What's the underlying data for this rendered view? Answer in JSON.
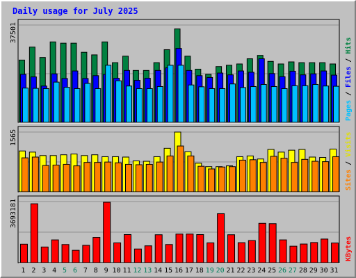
{
  "title": "Daily usage for July 2025",
  "colors": {
    "background": "#c0c0c0",
    "title": "#0000ff",
    "hits": "#008040",
    "files": "#0000ff",
    "pages": "#00c0ff",
    "visits": "#ffff00",
    "sites": "#ff8000",
    "kbytes": "#ff0000",
    "weekend_label": "#00805c",
    "weekday_label": "#000000",
    "separator": "#808080"
  },
  "chart_data": [
    {
      "type": "bar",
      "panel": "hits-files-pages",
      "max_label": "37501",
      "ylim": [
        0,
        37501
      ],
      "legend": [
        {
          "label": "Hits",
          "color": "#008040"
        },
        {
          "label": "Files",
          "color": "#0000ff"
        },
        {
          "label": "Pages",
          "color": "#00c0ff"
        }
      ],
      "categories": [
        "1",
        "2",
        "3",
        "4",
        "5",
        "6",
        "7",
        "8",
        "9",
        "10",
        "11",
        "12",
        "13",
        "14",
        "15",
        "16",
        "17",
        "18",
        "19",
        "20",
        "21",
        "22",
        "23",
        "24",
        "25",
        "26",
        "27",
        "28",
        "29",
        "30",
        "31"
      ],
      "series": [
        {
          "name": "Hits",
          "values": [
            24000,
            29000,
            25000,
            31000,
            30500,
            30500,
            27000,
            26000,
            31000,
            23000,
            25500,
            20000,
            20000,
            23000,
            28000,
            36000,
            25500,
            20500,
            18500,
            21500,
            22000,
            22500,
            24500,
            25800,
            23500,
            22500,
            23300,
            23000,
            23000,
            23000,
            22500
          ]
        },
        {
          "name": "Files",
          "values": [
            18500,
            17500,
            14000,
            18700,
            16900,
            19800,
            16900,
            18000,
            18500,
            17000,
            20000,
            16200,
            17000,
            20000,
            21000,
            28500,
            20000,
            18000,
            17300,
            19000,
            18300,
            19800,
            19300,
            24500,
            18800,
            17600,
            19700,
            18300,
            18700,
            19800,
            18200
          ]
        },
        {
          "name": "Pages",
          "values": [
            13200,
            13100,
            13000,
            15500,
            13500,
            13000,
            15000,
            13000,
            22000,
            16000,
            14000,
            13000,
            13000,
            13800,
            22000,
            22000,
            14400,
            13700,
            13000,
            13000,
            14800,
            13400,
            13800,
            14600,
            13800,
            13000,
            14100,
            14100,
            14600,
            14000,
            13900
          ]
        }
      ]
    },
    {
      "type": "bar",
      "panel": "visits-sites",
      "max_label": "1565",
      "ylim": [
        0,
        1565
      ],
      "legend": [
        {
          "label": "Visits",
          "color": "#ffff00"
        },
        {
          "label": "Sites",
          "color": "#ff8000"
        }
      ],
      "categories": [
        "1",
        "2",
        "3",
        "4",
        "5",
        "6",
        "7",
        "8",
        "9",
        "10",
        "11",
        "12",
        "13",
        "14",
        "15",
        "16",
        "17",
        "18",
        "19",
        "20",
        "21",
        "22",
        "23",
        "24",
        "25",
        "26",
        "27",
        "28",
        "29",
        "30",
        "31"
      ],
      "series": [
        {
          "name": "Visits",
          "values": [
            1070,
            1040,
            950,
            950,
            970,
            990,
            950,
            970,
            920,
            920,
            910,
            810,
            800,
            920,
            1140,
            1565,
            1050,
            750,
            660,
            660,
            680,
            920,
            940,
            860,
            1110,
            1040,
            1090,
            1110,
            910,
            900,
            1120
          ]
        },
        {
          "name": "Sites",
          "values": [
            890,
            910,
            690,
            700,
            720,
            680,
            770,
            770,
            780,
            760,
            720,
            710,
            720,
            780,
            940,
            1200,
            940,
            670,
            600,
            650,
            660,
            830,
            840,
            770,
            930,
            880,
            770,
            850,
            800,
            790,
            920
          ]
        }
      ]
    },
    {
      "type": "bar",
      "panel": "kbytes",
      "max_label": "3693181",
      "ylim": [
        0,
        3693181
      ],
      "legend": [
        {
          "label": "KBytes",
          "color": "#ff0000"
        }
      ],
      "categories": [
        "1",
        "2",
        "3",
        "4",
        "5",
        "6",
        "7",
        "8",
        "9",
        "10",
        "11",
        "12",
        "13",
        "14",
        "15",
        "16",
        "17",
        "18",
        "19",
        "20",
        "21",
        "22",
        "23",
        "24",
        "25",
        "26",
        "27",
        "28",
        "29",
        "30",
        "31"
      ],
      "series": [
        {
          "name": "KBytes",
          "values": [
            1120000,
            3560000,
            950000,
            1380000,
            1100000,
            750000,
            1050000,
            1530000,
            3650000,
            1200000,
            1700000,
            830000,
            1020000,
            1690000,
            1100000,
            1730000,
            1730000,
            1700000,
            1200000,
            2960000,
            1690000,
            1210000,
            1340000,
            2380000,
            2360000,
            1380000,
            1000000,
            1130000,
            1220000,
            1430000,
            1190000
          ]
        }
      ]
    }
  ],
  "weekend_days": [
    "5",
    "6",
    "12",
    "13",
    "19",
    "20",
    "26",
    "27"
  ]
}
